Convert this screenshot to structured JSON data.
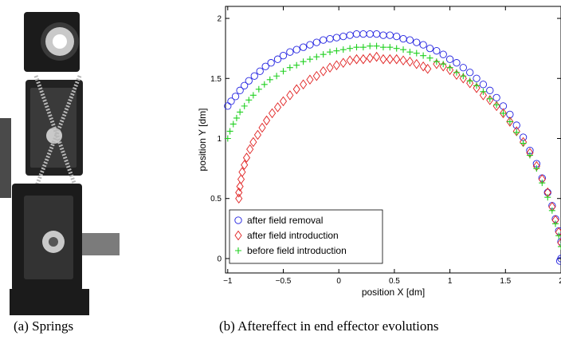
{
  "figure": {
    "caption_a": "(a)  Springs",
    "caption_b": "(b)  Aftereffect in end effector evolutions"
  },
  "photo": {
    "colors": {
      "body": "#1b1b1b",
      "body_light": "#3a3a3a",
      "metal": "#c9c9c9",
      "rail": "#7b7b7b"
    }
  },
  "chart_data": {
    "type": "scatter",
    "xlabel": "position X [dm]",
    "ylabel": "position Y [dm]",
    "xlim": [
      -1.02,
      2.0
    ],
    "ylim": [
      -0.12,
      2.1
    ],
    "xticks": [
      -1,
      -0.5,
      0,
      0.5,
      1,
      1.5,
      2
    ],
    "yticks": [
      0,
      0.5,
      1,
      1.5,
      2
    ],
    "xtick_labels": [
      "−1",
      "−0.5",
      "0",
      "0.5",
      "1",
      "1.5",
      "2"
    ],
    "ytick_labels": [
      "0",
      "0.5",
      "1",
      "1.5",
      "2"
    ],
    "grid": false,
    "legend_position": "bottom-left",
    "series": [
      {
        "name": "after field removal",
        "marker": "circle",
        "color": "#2020e0",
        "x": [
          -1.0,
          -0.97,
          -0.93,
          -0.89,
          -0.85,
          -0.81,
          -0.76,
          -0.71,
          -0.66,
          -0.61,
          -0.55,
          -0.5,
          -0.44,
          -0.38,
          -0.32,
          -0.26,
          -0.2,
          -0.14,
          -0.08,
          -0.02,
          0.04,
          0.1,
          0.16,
          0.22,
          0.28,
          0.34,
          0.4,
          0.46,
          0.52,
          0.58,
          0.64,
          0.7,
          0.76,
          0.82,
          0.88,
          0.94,
          1.0,
          1.06,
          1.12,
          1.18,
          1.24,
          1.3,
          1.36,
          1.42,
          1.48,
          1.54,
          1.6,
          1.66,
          1.72,
          1.78,
          1.83,
          1.88,
          1.92,
          1.95,
          1.98,
          2.0,
          2.01,
          2.01,
          2.0,
          1.99
        ],
        "y": [
          1.27,
          1.31,
          1.35,
          1.4,
          1.44,
          1.48,
          1.52,
          1.56,
          1.6,
          1.63,
          1.66,
          1.69,
          1.72,
          1.74,
          1.76,
          1.78,
          1.8,
          1.82,
          1.83,
          1.84,
          1.85,
          1.86,
          1.87,
          1.87,
          1.87,
          1.87,
          1.86,
          1.86,
          1.85,
          1.83,
          1.82,
          1.8,
          1.78,
          1.75,
          1.73,
          1.7,
          1.66,
          1.63,
          1.59,
          1.55,
          1.5,
          1.45,
          1.4,
          1.34,
          1.27,
          1.2,
          1.11,
          1.01,
          0.9,
          0.79,
          0.67,
          0.55,
          0.44,
          0.33,
          0.23,
          0.14,
          0.07,
          0.02,
          0.0,
          -0.02
        ]
      },
      {
        "name": "after field introduction",
        "marker": "diamond",
        "color": "#e02020",
        "x": [
          -0.9,
          -0.9,
          -0.89,
          -0.88,
          -0.87,
          -0.85,
          -0.83,
          -0.8,
          -0.77,
          -0.73,
          -0.69,
          -0.65,
          -0.6,
          -0.55,
          -0.5,
          -0.44,
          -0.38,
          -0.32,
          -0.26,
          -0.2,
          -0.14,
          -0.08,
          -0.02,
          0.04,
          0.1,
          0.16,
          0.22,
          0.28,
          0.34,
          0.4,
          0.46,
          0.52,
          0.58,
          0.64,
          0.7,
          0.76,
          0.8,
          0.88,
          0.94,
          1.0,
          1.06,
          1.12,
          1.18,
          1.24,
          1.3,
          1.36,
          1.42,
          1.48,
          1.54,
          1.6,
          1.66,
          1.72,
          1.78,
          1.83,
          1.88,
          1.92,
          1.95,
          1.98,
          2.0
        ],
        "y": [
          0.5,
          0.55,
          0.6,
          0.66,
          0.72,
          0.78,
          0.84,
          0.91,
          0.97,
          1.03,
          1.09,
          1.15,
          1.21,
          1.26,
          1.31,
          1.36,
          1.41,
          1.45,
          1.49,
          1.52,
          1.56,
          1.59,
          1.61,
          1.63,
          1.65,
          1.66,
          1.66,
          1.67,
          1.68,
          1.66,
          1.66,
          1.66,
          1.65,
          1.64,
          1.62,
          1.6,
          1.58,
          1.62,
          1.6,
          1.57,
          1.53,
          1.5,
          1.46,
          1.42,
          1.36,
          1.32,
          1.27,
          1.21,
          1.14,
          1.06,
          0.97,
          0.88,
          0.77,
          0.66,
          0.55,
          0.43,
          0.32,
          0.22,
          0.13
        ]
      },
      {
        "name": "before field introduction",
        "marker": "plus",
        "color": "#20d020",
        "x": [
          -1.0,
          -0.98,
          -0.95,
          -0.92,
          -0.89,
          -0.85,
          -0.81,
          -0.77,
          -0.72,
          -0.67,
          -0.62,
          -0.56,
          -0.5,
          -0.44,
          -0.38,
          -0.32,
          -0.26,
          -0.2,
          -0.14,
          -0.08,
          -0.02,
          0.04,
          0.1,
          0.16,
          0.22,
          0.28,
          0.34,
          0.4,
          0.46,
          0.52,
          0.58,
          0.64,
          0.7,
          0.76,
          0.82,
          0.88,
          0.94,
          1.0,
          1.06,
          1.12,
          1.18,
          1.24,
          1.3,
          1.36,
          1.42,
          1.48,
          1.54,
          1.6,
          1.66,
          1.72,
          1.78,
          1.83,
          1.88,
          1.92,
          1.95,
          1.98,
          2.0,
          2.01
        ],
        "y": [
          1.0,
          1.06,
          1.12,
          1.17,
          1.22,
          1.27,
          1.32,
          1.36,
          1.41,
          1.45,
          1.49,
          1.52,
          1.56,
          1.59,
          1.61,
          1.64,
          1.66,
          1.68,
          1.7,
          1.72,
          1.73,
          1.74,
          1.75,
          1.76,
          1.76,
          1.77,
          1.77,
          1.76,
          1.76,
          1.75,
          1.74,
          1.72,
          1.71,
          1.69,
          1.67,
          1.64,
          1.62,
          1.59,
          1.55,
          1.52,
          1.48,
          1.44,
          1.39,
          1.33,
          1.28,
          1.21,
          1.14,
          1.05,
          0.96,
          0.86,
          0.75,
          0.63,
          0.51,
          0.4,
          0.29,
          0.19,
          0.1,
          0.03
        ]
      }
    ]
  }
}
